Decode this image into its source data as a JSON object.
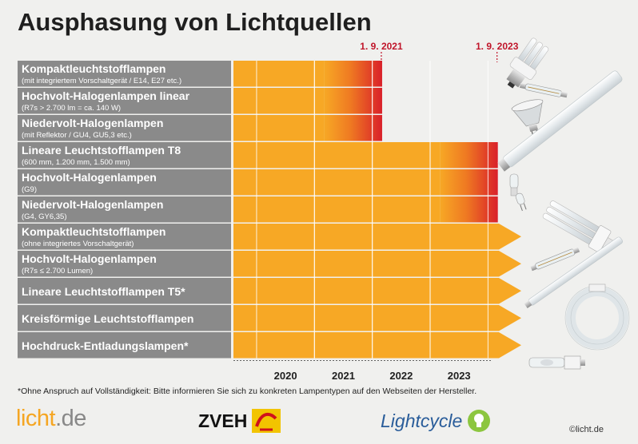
{
  "title": "Ausphasung von Lichtquellen",
  "footnote": "*Ohne Anspruch auf Vollständigkeit: Bitte informieren Sie sich zu konkreten Lampentypen auf den Webseiten der Hersteller.",
  "logos": {
    "licht_main": "licht",
    "licht_suffix": ".de",
    "zveh": "ZVEH",
    "lightcycle": "Lightcycle",
    "copyright": "©licht.de"
  },
  "colors": {
    "bar": "#f7a825",
    "bar_light": "#fbb535",
    "phaseout_end": "#d9202a",
    "label_bg": "#8a8a8a",
    "marker": "#c0152a"
  },
  "chart_data": {
    "type": "bar",
    "orientation": "horizontal",
    "title": "Ausphasung von Lichtquellen",
    "x_ticks": [
      "2020",
      "2021",
      "2022",
      "2023"
    ],
    "x_start": 2019.1,
    "x_end": 2023.55,
    "markers": [
      {
        "label": "1. 9. 2021",
        "x": 2021.67
      },
      {
        "label": "1. 9. 2023",
        "x": 2023.67
      }
    ],
    "rows": [
      {
        "name": "Kompaktleuchtstofflampen",
        "sub": "(mit integriertem Vorschaltgerät / E14, E27 etc.)",
        "end": "1. 9. 2021",
        "ongoing": false
      },
      {
        "name": "Hochvolt-Halogenlampen linear",
        "sub": "(R7s > 2.700 lm = ca. 140 W)",
        "end": "1. 9. 2021",
        "ongoing": false
      },
      {
        "name": "Niedervolt-Halogenlampen",
        "sub": "(mit Reflektor / GU4, GU5,3 etc.)",
        "end": "1. 9. 2021",
        "ongoing": false
      },
      {
        "name": "Lineare Leuchtstofflampen T8",
        "sub": "(600 mm, 1.200 mm, 1.500 mm)",
        "end": "1. 9. 2023",
        "ongoing": false
      },
      {
        "name": "Hochvolt-Halogenlampen",
        "sub": "(G9)",
        "end": "1. 9. 2023",
        "ongoing": false
      },
      {
        "name": "Niedervolt-Halogenlampen",
        "sub": "(G4, GY6,35)",
        "end": "1. 9. 2023",
        "ongoing": false
      },
      {
        "name": "Kompaktleuchtstofflampen",
        "sub": "(ohne integriertes Vorschaltgerät)",
        "end": "",
        "ongoing": true
      },
      {
        "name": "Hochvolt-Halogenlampen",
        "sub": "(R7s ≤ 2.700 Lumen)",
        "end": "",
        "ongoing": true
      },
      {
        "name": "Lineare Leuchtstofflampen T5*",
        "sub": "",
        "end": "",
        "ongoing": true
      },
      {
        "name": "Kreisförmige Leuchtstofflampen",
        "sub": "",
        "end": "",
        "ongoing": true
      },
      {
        "name": "Hochdruck-Entladungslampen*",
        "sub": "",
        "end": "",
        "ongoing": true
      }
    ]
  },
  "illustrations": [
    "compact-fluorescent-lamp-icon",
    "halogen-linear-lamp-icon",
    "reflector-halogen-lamp-icon",
    "fluorescent-tube-t8-icon",
    "g9-halogen-capsule-icon",
    "g4-halogen-pin-icon",
    "compact-fluorescent-plug-icon",
    "r7s-halogen-lamp-icon",
    "fluorescent-tube-t5-icon",
    "circular-fluorescent-lamp-icon",
    "hid-discharge-lamp-icon"
  ]
}
